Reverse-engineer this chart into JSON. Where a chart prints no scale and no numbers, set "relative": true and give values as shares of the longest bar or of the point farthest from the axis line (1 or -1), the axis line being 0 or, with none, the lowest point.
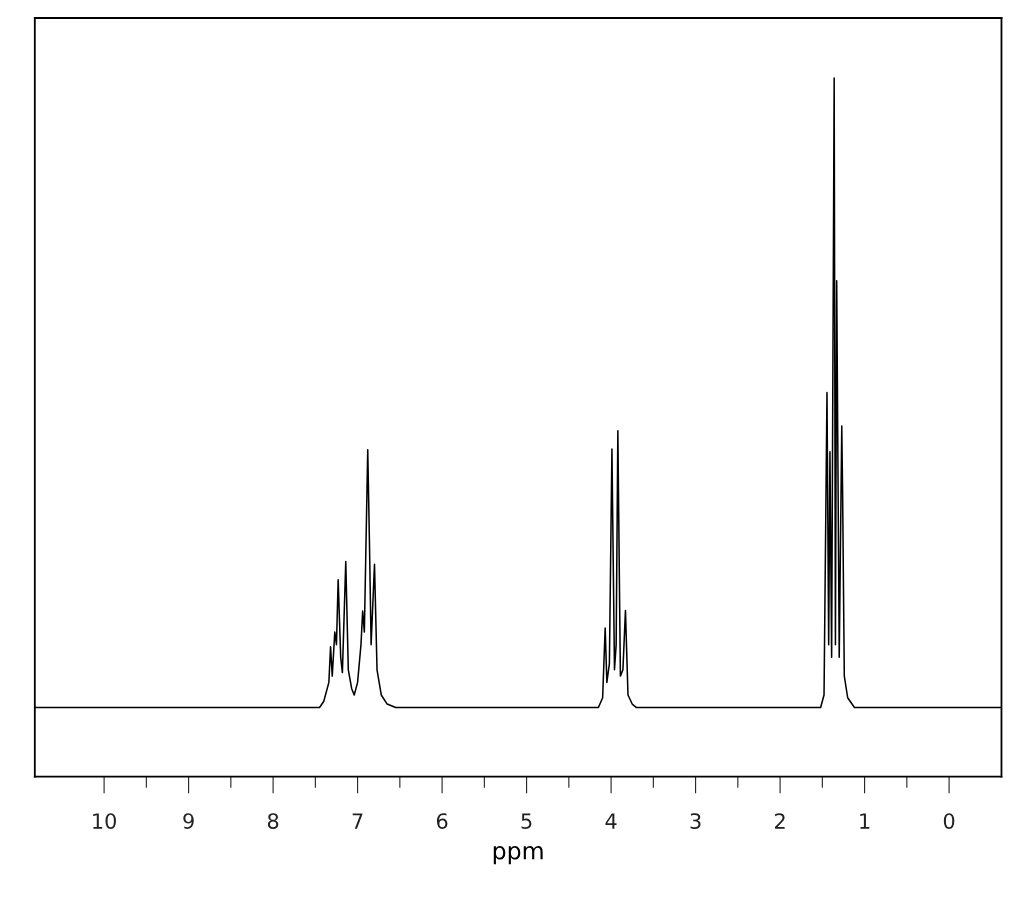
{
  "chart_data": {
    "type": "line",
    "relative": true,
    "xlabel": "ppm",
    "xlim": [
      10.82,
      -0.62
    ],
    "xticks": [
      10,
      {
        "value": 9.5,
        "label": null
      },
      9,
      {
        "value": 8.5,
        "label": null
      },
      8,
      {
        "value": 7.5,
        "label": null
      },
      7,
      {
        "value": 6.5,
        "label": null
      },
      6,
      {
        "value": 5.5,
        "label": null
      },
      5,
      {
        "value": 4.5,
        "label": null
      },
      4,
      {
        "value": 3.5,
        "label": null
      },
      3,
      {
        "value": 2.5,
        "label": null
      },
      2,
      {
        "value": 1.5,
        "label": null
      },
      1,
      {
        "value": 0.5,
        "label": null
      },
      0
    ],
    "grid": false,
    "legend": false,
    "marker": "none",
    "line_style": "solid",
    "series": [
      {
        "color": "#000000",
        "x": [
          10.82,
          7.45,
          7.4,
          7.34,
          7.32,
          7.3,
          7.27,
          7.25,
          7.23,
          7.2,
          7.18,
          7.14,
          7.11,
          7.07,
          7.04,
          7.0,
          6.96,
          6.94,
          6.92,
          6.88,
          6.86,
          6.84,
          6.8,
          6.77,
          6.72,
          6.65,
          6.55,
          4.15,
          4.1,
          4.07,
          4.05,
          4.02,
          3.99,
          3.96,
          3.94,
          3.92,
          3.89,
          3.86,
          3.83,
          3.8,
          3.75,
          3.7,
          1.52,
          1.48,
          1.445,
          1.425,
          1.41,
          1.39,
          1.36,
          1.345,
          1.33,
          1.3,
          1.27,
          1.26,
          1.24,
          1.2,
          1.12,
          -0.62
        ],
        "values": [
          0.099,
          0.099,
          0.108,
          0.135,
          0.186,
          0.144,
          0.207,
          0.189,
          0.282,
          0.171,
          0.149,
          0.308,
          0.153,
          0.126,
          0.117,
          0.135,
          0.189,
          0.237,
          0.207,
          0.468,
          0.337,
          0.189,
          0.304,
          0.153,
          0.117,
          0.104,
          0.099,
          0.099,
          0.113,
          0.213,
          0.135,
          0.162,
          0.469,
          0.153,
          0.189,
          0.495,
          0.144,
          0.153,
          0.238,
          0.117,
          0.104,
          0.099,
          0.099,
          0.117,
          0.55,
          0.189,
          0.465,
          0.171,
          1.0,
          0.189,
          0.71,
          0.171,
          0.502,
          0.405,
          0.144,
          0.113,
          0.099,
          0.099
        ]
      }
    ]
  }
}
